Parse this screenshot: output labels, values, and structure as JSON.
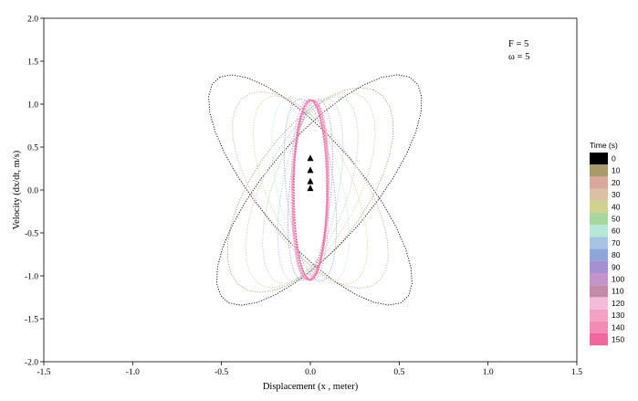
{
  "chart_data": {
    "type": "scatter",
    "xlabel": "Displacement (x , meter)",
    "ylabel": "Velocity (dx/dt, m/s)",
    "xlim": [
      -1.5,
      1.5
    ],
    "ylim": [
      -2.0,
      2.0
    ],
    "x_ticks": [
      "-1.5",
      "-1.0",
      "-0.5",
      "0.0",
      "0.5",
      "1.0",
      "1.5"
    ],
    "y_ticks": [
      "-2.0",
      "-1.5",
      "-1.0",
      "-0.5",
      "0.0",
      "0.5",
      "1.0",
      "1.5",
      "2.0"
    ],
    "annotations": [
      "F = 5",
      "ω = 5"
    ],
    "legend": {
      "title": "Time (s)",
      "placement": "right",
      "entries": [
        {
          "label": "0",
          "color": "#000000"
        },
        {
          "label": "10",
          "color": "#a89a6a"
        },
        {
          "label": "20",
          "color": "#d9a89a"
        },
        {
          "label": "30",
          "color": "#dcc0a4"
        },
        {
          "label": "40",
          "color": "#d2d28e"
        },
        {
          "label": "50",
          "color": "#a6d89e"
        },
        {
          "label": "60",
          "color": "#b6e8d6"
        },
        {
          "label": "70",
          "color": "#a8c4e4"
        },
        {
          "label": "80",
          "color": "#8ea6dc"
        },
        {
          "label": "90",
          "color": "#a690d4"
        },
        {
          "label": "100",
          "color": "#c694cc"
        },
        {
          "label": "110",
          "color": "#c48ca8"
        },
        {
          "label": "120",
          "color": "#f4bcd8"
        },
        {
          "label": "130",
          "color": "#f4a2c4"
        },
        {
          "label": "140",
          "color": "#f28cb4"
        },
        {
          "label": "150",
          "color": "#f0669e"
        }
      ]
    },
    "series": [
      {
        "time": 0,
        "color": "#000000",
        "cx": 0.05,
        "cy": 0.0,
        "a": 1.55,
        "b": 0.52,
        "tilt": 58
      },
      {
        "time": 0,
        "color": "#000000",
        "cx": 0.0,
        "cy": 0.0,
        "a": 1.55,
        "b": 0.5,
        "tilt": 122
      },
      {
        "time": 10,
        "color": "#a89a6a",
        "cx": 0.0,
        "cy": 0.0,
        "a": 1.3,
        "b": 0.55,
        "tilt": 64
      },
      {
        "time": 20,
        "color": "#d9a89a",
        "cx": 0.0,
        "cy": 0.0,
        "a": 1.25,
        "b": 0.5,
        "tilt": 116
      },
      {
        "time": 30,
        "color": "#dcc0a4",
        "cx": 0.0,
        "cy": 0.0,
        "a": 1.2,
        "b": 0.45,
        "tilt": 70
      },
      {
        "time": 40,
        "color": "#d2d28e",
        "cx": 0.0,
        "cy": 0.0,
        "a": 1.15,
        "b": 0.4,
        "tilt": 108
      },
      {
        "time": 50,
        "color": "#a6d89e",
        "cx": 0.0,
        "cy": 0.0,
        "a": 1.12,
        "b": 0.35,
        "tilt": 76
      },
      {
        "time": 60,
        "color": "#b6e8d6",
        "cx": 0.0,
        "cy": 0.0,
        "a": 1.1,
        "b": 0.3,
        "tilt": 100
      },
      {
        "time": 70,
        "color": "#a8c4e4",
        "cx": 0.0,
        "cy": 0.0,
        "a": 1.08,
        "b": 0.26,
        "tilt": 82
      },
      {
        "time": 80,
        "color": "#8ea6dc",
        "cx": 0.0,
        "cy": 0.0,
        "a": 1.07,
        "b": 0.22,
        "tilt": 95
      },
      {
        "time": 90,
        "color": "#a690d4",
        "cx": 0.0,
        "cy": 0.0,
        "a": 1.06,
        "b": 0.19,
        "tilt": 86
      },
      {
        "time": 100,
        "color": "#c694cc",
        "cx": 0.0,
        "cy": 0.0,
        "a": 1.06,
        "b": 0.17,
        "tilt": 91
      },
      {
        "time": 110,
        "color": "#c48ca8",
        "cx": 0.0,
        "cy": 0.0,
        "a": 1.05,
        "b": 0.16,
        "tilt": 88
      },
      {
        "time": 120,
        "color": "#f4bcd8",
        "cx": 0.0,
        "cy": 0.0,
        "a": 1.05,
        "b": 0.17,
        "tilt": 89
      },
      {
        "time": 130,
        "color": "#f4a2c4",
        "cx": 0.0,
        "cy": 0.0,
        "a": 1.05,
        "b": 0.16,
        "tilt": 90
      },
      {
        "time": 140,
        "color": "#f28cb4",
        "cx": 0.0,
        "cy": 0.0,
        "a": 1.05,
        "b": 0.16,
        "tilt": 89
      },
      {
        "time": 150,
        "color": "#f0669e",
        "cx": 0.0,
        "cy": 0.0,
        "a": 1.05,
        "b": 0.15,
        "tilt": 90
      }
    ],
    "markers": [
      {
        "x": 0.0,
        "y": 0.37
      },
      {
        "x": 0.0,
        "y": 0.23
      },
      {
        "x": 0.0,
        "y": 0.1
      },
      {
        "x": 0.0,
        "y": 0.02
      }
    ]
  }
}
